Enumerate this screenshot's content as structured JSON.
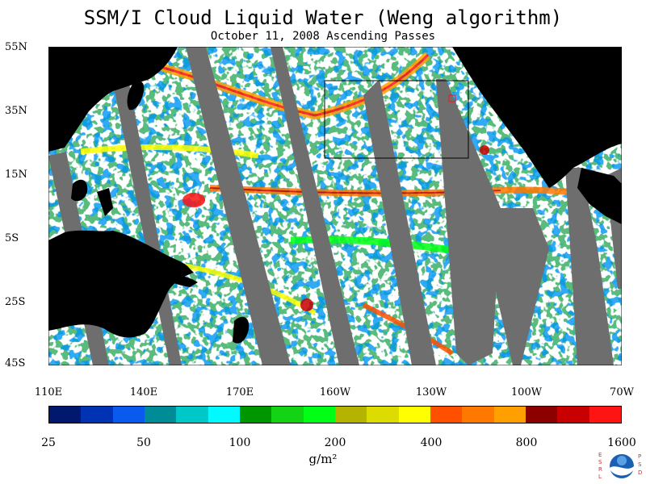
{
  "title": "SSM/I Cloud Liquid Water (Weng algorithm)",
  "subtitle": "October 11, 2008  Ascending Passes",
  "lat_ticks": [
    "55N",
    "35N",
    "15N",
    "5S",
    "25S",
    "45S"
  ],
  "lon_ticks": [
    "110E",
    "140E",
    "170E",
    "160W",
    "130W",
    "100W",
    "70W"
  ],
  "colorbar": {
    "colors": [
      "#00196e",
      "#0032b4",
      "#0a5af0",
      "#008c96",
      "#00c8c8",
      "#00faff",
      "#009600",
      "#14d214",
      "#00ff14",
      "#b4b400",
      "#dcdc00",
      "#ffff00",
      "#ff5000",
      "#ff7800",
      "#ffa000",
      "#8c0000",
      "#c80000",
      "#ff1414"
    ],
    "labels": [
      "25",
      "50",
      "100",
      "200",
      "400",
      "800",
      "1600"
    ]
  },
  "unit": "g/m²",
  "logo": {
    "left_letters": "E S R L",
    "right_letters": "P S D",
    "center": "NOAA"
  },
  "colors": {
    "land": "#000000",
    "no_data": "#6e6e6e",
    "ocean": "#ffffff"
  }
}
